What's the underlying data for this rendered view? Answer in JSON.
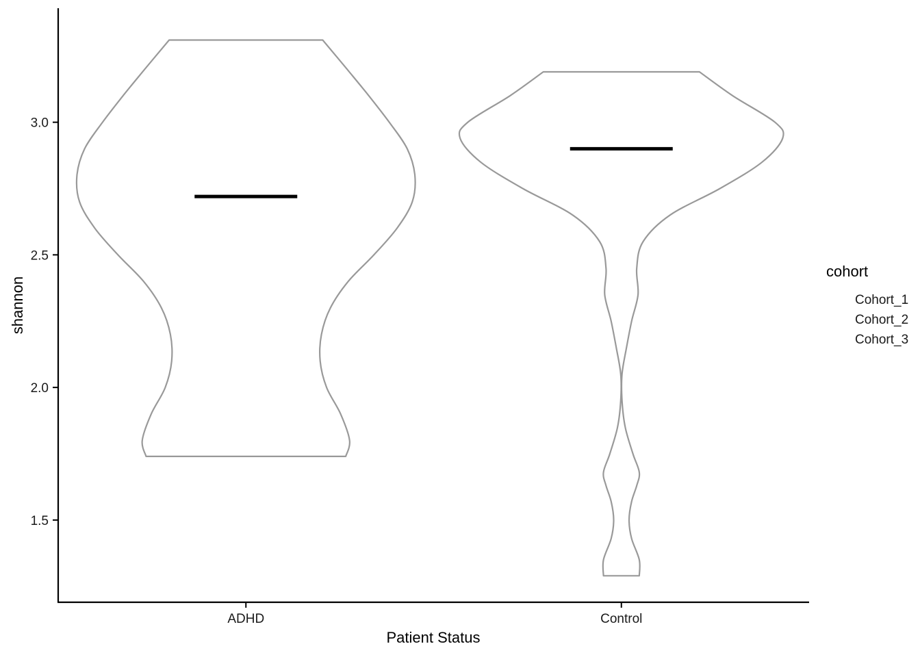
{
  "chart_data": {
    "type": "violin",
    "xlabel": "Patient Status",
    "ylabel": "shannon",
    "ylim": [
      1.19,
      3.43
    ],
    "y_ticks": [
      1.5,
      2.0,
      2.5,
      3.0
    ],
    "y_tick_labels": [
      "1.5",
      "2.0",
      "2.5",
      "3.0"
    ],
    "grid": false,
    "categories": [
      "ADHD",
      "Control"
    ],
    "violins": [
      {
        "category": "ADHD",
        "outline_color": "#999999",
        "median": 2.72,
        "range": [
          1.74,
          3.31
        ],
        "density_profile": [
          [
            1.74,
            0.78
          ],
          [
            1.8,
            0.81
          ],
          [
            1.9,
            0.74
          ],
          [
            2.0,
            0.63
          ],
          [
            2.1,
            0.58
          ],
          [
            2.2,
            0.59
          ],
          [
            2.3,
            0.66
          ],
          [
            2.4,
            0.8
          ],
          [
            2.5,
            1.0
          ],
          [
            2.6,
            1.18
          ],
          [
            2.7,
            1.3
          ],
          [
            2.8,
            1.32
          ],
          [
            2.9,
            1.26
          ],
          [
            3.0,
            1.12
          ],
          [
            3.1,
            0.96
          ],
          [
            3.2,
            0.79
          ],
          [
            3.31,
            0.6
          ]
        ]
      },
      {
        "category": "Control",
        "outline_color": "#999999",
        "median": 2.9,
        "range": [
          1.29,
          3.19
        ],
        "density_profile": [
          [
            1.29,
            0.14
          ],
          [
            1.35,
            0.14
          ],
          [
            1.43,
            0.08
          ],
          [
            1.5,
            0.06
          ],
          [
            1.57,
            0.08
          ],
          [
            1.63,
            0.12
          ],
          [
            1.68,
            0.14
          ],
          [
            1.75,
            0.09
          ],
          [
            1.85,
            0.03
          ],
          [
            1.95,
            0.005
          ],
          [
            2.05,
            0.005
          ],
          [
            2.15,
            0.04
          ],
          [
            2.25,
            0.08
          ],
          [
            2.35,
            0.13
          ],
          [
            2.45,
            0.12
          ],
          [
            2.55,
            0.17
          ],
          [
            2.65,
            0.38
          ],
          [
            2.75,
            0.77
          ],
          [
            2.85,
            1.1
          ],
          [
            2.94,
            1.26
          ],
          [
            3.0,
            1.2
          ],
          [
            3.1,
            0.87
          ],
          [
            3.19,
            0.61
          ]
        ]
      }
    ],
    "legend": {
      "title": "cohort",
      "entries": [
        "Cohort_1",
        "Cohort_2",
        "Cohort_3"
      ],
      "placement": "right"
    }
  }
}
